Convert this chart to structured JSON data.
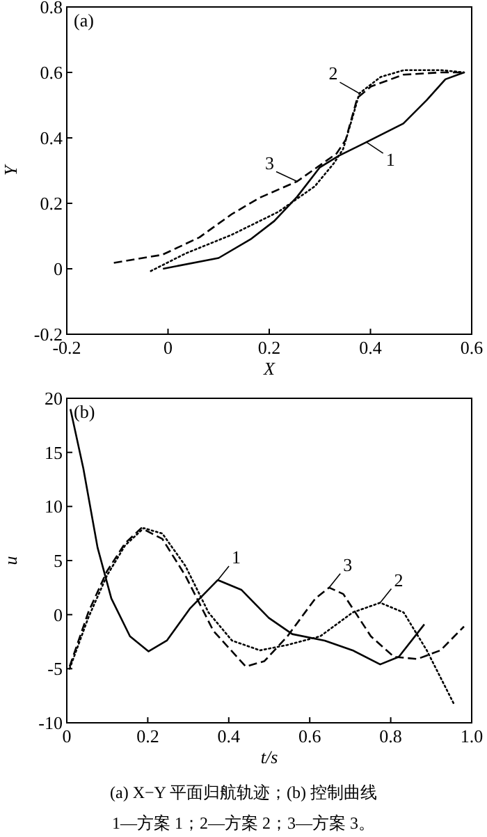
{
  "chart_data": [
    {
      "type": "line",
      "title": "(a)",
      "xlabel": "X",
      "ylabel": "Y",
      "xlim": [
        -0.2,
        0.6
      ],
      "ylim": [
        -0.2,
        0.8
      ],
      "xticks": [
        -0.2,
        0,
        0.2,
        0.4,
        0.6
      ],
      "yticks": [
        -0.2,
        0,
        0.2,
        0.4,
        0.6,
        0.8
      ],
      "grid": false,
      "series": [
        {
          "name": "1",
          "color": "#000000",
          "line_style": "solid",
          "x": [
            -0.01,
            0.1,
            0.163,
            0.21,
            0.255,
            0.3,
            0.337,
            0.392,
            0.465,
            0.511,
            0.548,
            0.585
          ],
          "values": [
            0,
            0.033,
            0.09,
            0.146,
            0.22,
            0.31,
            0.345,
            0.387,
            0.444,
            0.515,
            0.579,
            0.6
          ]
        },
        {
          "name": "2",
          "color": "#000000",
          "line_style": "dotted",
          "x": [
            -0.034,
            0.035,
            0.126,
            0.218,
            0.29,
            0.328,
            0.346,
            0.365,
            0.378,
            0.42,
            0.466,
            0.539,
            0.585
          ],
          "values": [
            -0.007,
            0.047,
            0.104,
            0.174,
            0.252,
            0.323,
            0.366,
            0.465,
            0.536,
            0.586,
            0.607,
            0.607,
            0.6
          ]
        },
        {
          "name": "3",
          "color": "#000000",
          "line_style": "dashed",
          "x": [
            -0.107,
            -0.011,
            0.062,
            0.126,
            0.181,
            0.255,
            0.333,
            0.351,
            0.374,
            0.401,
            0.465,
            0.539,
            0.585
          ],
          "values": [
            0.018,
            0.043,
            0.096,
            0.167,
            0.217,
            0.267,
            0.352,
            0.394,
            0.522,
            0.557,
            0.593,
            0.6,
            0.6
          ]
        }
      ]
    },
    {
      "type": "line",
      "title": "(b)",
      "xlabel": "t/s",
      "ylabel": "u",
      "xlim": [
        0,
        1
      ],
      "ylim": [
        -10,
        20
      ],
      "xticks": [
        0,
        0.2,
        0.4,
        0.6,
        0.8,
        {
          "value": 1,
          "label": "1.0"
        }
      ],
      "yticks": [
        -10,
        -5,
        0,
        5,
        10,
        15,
        20
      ],
      "grid": false,
      "annotations": [
        "(a) X−Y 平面归航轨迹；(b)  控制曲线",
        "1—方案 1；2—方案 2；3—方案 3。"
      ],
      "series": [
        {
          "name": "1",
          "color": "#000000",
          "line_style": "solid",
          "x": [
            0.009,
            0.041,
            0.076,
            0.11,
            0.156,
            0.202,
            0.247,
            0.305,
            0.373,
            0.431,
            0.499,
            0.557,
            0.637,
            0.706,
            0.774,
            0.82,
            0.883
          ],
          "values": [
            19.0,
            13.5,
            6.2,
            1.5,
            -2.0,
            -3.4,
            -2.4,
            0.6,
            3.2,
            2.3,
            -0.3,
            -1.8,
            -2.4,
            -3.3,
            -4.6,
            -3.9,
            -0.9
          ]
        },
        {
          "name": "2",
          "color": "#000000",
          "line_style": "dotted",
          "x": [
            0.007,
            0.053,
            0.099,
            0.144,
            0.19,
            0.236,
            0.293,
            0.35,
            0.408,
            0.477,
            0.545,
            0.626,
            0.706,
            0.774,
            0.832,
            0.889,
            0.958
          ],
          "values": [
            -5.0,
            -0.3,
            3.6,
            6.4,
            8.0,
            7.5,
            4.5,
            0.2,
            -2.4,
            -3.3,
            -2.8,
            -2.0,
            0.2,
            1.1,
            0.2,
            -3.3,
            -8.4
          ]
        },
        {
          "name": "3",
          "color": "#000000",
          "line_style": "dashed",
          "x": [
            0.007,
            0.053,
            0.099,
            0.144,
            0.184,
            0.236,
            0.293,
            0.362,
            0.442,
            0.488,
            0.545,
            0.614,
            0.648,
            0.683,
            0.751,
            0.808,
            0.866,
            0.923,
            0.981
          ],
          "values": [
            -4.8,
            0.2,
            4.0,
            6.6,
            8.0,
            7.0,
            3.6,
            -1.5,
            -4.8,
            -4.3,
            -2.0,
            1.5,
            2.5,
            1.9,
            -2.0,
            -3.9,
            -4.1,
            -3.3,
            -1.1
          ]
        }
      ]
    }
  ]
}
